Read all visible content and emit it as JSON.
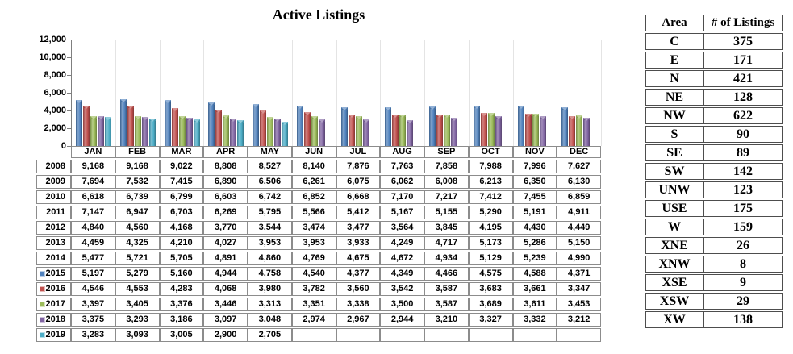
{
  "chart_data": {
    "type": "bar",
    "title": "Active Listings",
    "categories": [
      "JAN",
      "FEB",
      "MAR",
      "APR",
      "MAY",
      "JUN",
      "JUL",
      "AUG",
      "SEP",
      "OCT",
      "NOV",
      "DEC"
    ],
    "series": [
      {
        "name": "2015",
        "color": "#4F81BD",
        "values": [
          5197,
          5279,
          5160,
          4944,
          4758,
          4540,
          4377,
          4349,
          4466,
          4575,
          4588,
          4371
        ]
      },
      {
        "name": "2016",
        "color": "#C0504D",
        "values": [
          4546,
          4553,
          4283,
          4068,
          3980,
          3782,
          3560,
          3542,
          3587,
          3683,
          3661,
          3347
        ]
      },
      {
        "name": "2017",
        "color": "#9BBB59",
        "values": [
          3397,
          3405,
          3376,
          3446,
          3313,
          3351,
          3338,
          3500,
          3587,
          3689,
          3611,
          3453
        ]
      },
      {
        "name": "2018",
        "color": "#8064A2",
        "values": [
          3375,
          3293,
          3186,
          3097,
          3048,
          2974,
          2967,
          2944,
          3210,
          3327,
          3332,
          3212
        ]
      },
      {
        "name": "2019",
        "color": "#4BACC6",
        "values": [
          3283,
          3093,
          3005,
          2900,
          2705,
          null,
          null,
          null,
          null,
          null,
          null,
          null
        ]
      }
    ],
    "ylim": [
      0,
      12000
    ],
    "ytick_step": 2000,
    "ytick_labels": [
      "0",
      "2,000",
      "4,000",
      "6,000",
      "8,000",
      "10,000",
      "12,000"
    ],
    "grid": false,
    "legend_position": "row-header-markers"
  },
  "data_table": {
    "columns": [
      "JAN",
      "FEB",
      "MAR",
      "APR",
      "MAY",
      "JUN",
      "JUL",
      "AUG",
      "SEP",
      "OCT",
      "NOV",
      "DEC"
    ],
    "rows": [
      {
        "year": "2008",
        "marker_color": null,
        "values": [
          9168,
          9168,
          9022,
          8808,
          8527,
          8140,
          7876,
          7763,
          7858,
          7988,
          7996,
          7627
        ]
      },
      {
        "year": "2009",
        "marker_color": null,
        "values": [
          7694,
          7532,
          7415,
          6890,
          6506,
          6261,
          6075,
          6062,
          6008,
          6213,
          6350,
          6130
        ]
      },
      {
        "year": "2010",
        "marker_color": null,
        "values": [
          6618,
          6739,
          6799,
          6603,
          6742,
          6852,
          6668,
          7170,
          7217,
          7412,
          7455,
          6859
        ]
      },
      {
        "year": "2011",
        "marker_color": null,
        "values": [
          7147,
          6947,
          6703,
          6269,
          5795,
          5566,
          5412,
          5167,
          5155,
          5290,
          5191,
          4911
        ]
      },
      {
        "year": "2012",
        "marker_color": null,
        "values": [
          4840,
          4560,
          4168,
          3770,
          3544,
          3474,
          3477,
          3564,
          3845,
          4195,
          4430,
          4449
        ]
      },
      {
        "year": "2013",
        "marker_color": null,
        "values": [
          4459,
          4325,
          4210,
          4027,
          3953,
          3953,
          3933,
          4249,
          4717,
          5173,
          5286,
          5150
        ]
      },
      {
        "year": "2014",
        "marker_color": null,
        "values": [
          5477,
          5721,
          5705,
          4891,
          4860,
          4769,
          4675,
          4672,
          4934,
          5129,
          5239,
          4990
        ]
      },
      {
        "year": "2015",
        "marker_color": "#4F81BD",
        "values": [
          5197,
          5279,
          5160,
          4944,
          4758,
          4540,
          4377,
          4349,
          4466,
          4575,
          4588,
          4371
        ]
      },
      {
        "year": "2016",
        "marker_color": "#C0504D",
        "values": [
          4546,
          4553,
          4283,
          4068,
          3980,
          3782,
          3560,
          3542,
          3587,
          3683,
          3661,
          3347
        ]
      },
      {
        "year": "2017",
        "marker_color": "#9BBB59",
        "values": [
          3397,
          3405,
          3376,
          3446,
          3313,
          3351,
          3338,
          3500,
          3587,
          3689,
          3611,
          3453
        ]
      },
      {
        "year": "2018",
        "marker_color": "#8064A2",
        "values": [
          3375,
          3293,
          3186,
          3097,
          3048,
          2974,
          2967,
          2944,
          3210,
          3327,
          3332,
          3212
        ]
      },
      {
        "year": "2019",
        "marker_color": "#4BACC6",
        "values": [
          3283,
          3093,
          3005,
          2900,
          2705,
          null,
          null,
          null,
          null,
          null,
          null,
          null
        ]
      }
    ]
  },
  "area_table": {
    "headers": [
      "Area",
      "# of Listings"
    ],
    "rows": [
      {
        "area": "C",
        "listings": 375
      },
      {
        "area": "E",
        "listings": 171
      },
      {
        "area": "N",
        "listings": 421
      },
      {
        "area": "NE",
        "listings": 128
      },
      {
        "area": "NW",
        "listings": 622
      },
      {
        "area": "S",
        "listings": 90
      },
      {
        "area": "SE",
        "listings": 89
      },
      {
        "area": "SW",
        "listings": 142
      },
      {
        "area": "UNW",
        "listings": 123
      },
      {
        "area": "USE",
        "listings": 175
      },
      {
        "area": "W",
        "listings": 159
      },
      {
        "area": "XNE",
        "listings": 26
      },
      {
        "area": "XNW",
        "listings": 8
      },
      {
        "area": "XSE",
        "listings": 9
      },
      {
        "area": "XSW",
        "listings": 29
      },
      {
        "area": "XW",
        "listings": 138
      }
    ]
  },
  "colors": {
    "axis": "#7f7f7f",
    "table_border": "#8c8c8c",
    "area_table_border": "#4d4d4d",
    "column_separator": "#e4e4e4"
  }
}
